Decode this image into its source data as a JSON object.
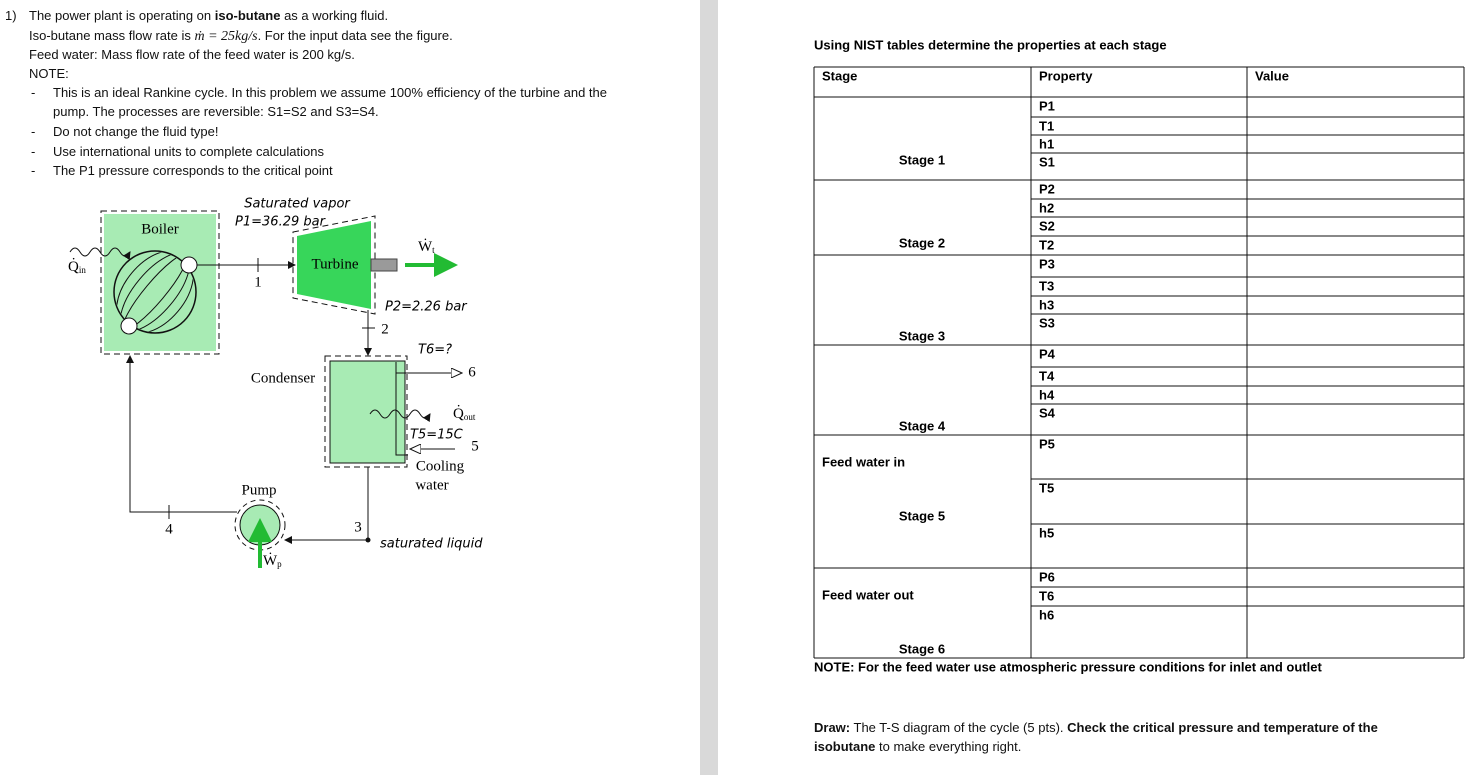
{
  "problem": {
    "number": "1)",
    "intro": {
      "before": "The power plant is operating on ",
      "bold": "iso-butane",
      "after": " as a working fluid."
    },
    "mass_flow": {
      "before": "Iso-butane mass flow rate is ",
      "formula": "ṁ = 25kg/s",
      "after": ". For the input data see the figure."
    },
    "feed_water": "Feed water: Mass flow rate of the feed water is 200 kg/s.",
    "note_label": "NOTE:",
    "bullet": "-",
    "notes": [
      "This is an ideal Rankine cycle. In this problem we assume 100% efficiency of the turbine and the pump. The processes are reversible: S1=S2 and S3=S4.",
      "Do not change the fluid type!",
      "Use international units to complete calculations",
      "The P1 pressure corresponds to the critical point"
    ]
  },
  "diagram": {
    "saturated_vapor": "Saturated vapor",
    "p1": "P1=36.29 bar",
    "boiler": "Boiler",
    "turbine": "Turbine",
    "condenser": "Condenser",
    "pump": "Pump",
    "work_turbine": {
      "symbol": "Ẇ",
      "subscript": "t"
    },
    "heat_in": {
      "symbol": "Q̇",
      "subscript": "in"
    },
    "heat_out": {
      "symbol": "Q̇",
      "subscript": "out"
    },
    "work_pump": {
      "symbol": "Ẇ",
      "subscript": "p"
    },
    "p2": "P2=2.26 bar",
    "t6": "T6=?",
    "t5": "T5=15C",
    "cooling_water": [
      "Cooling",
      "water"
    ],
    "saturated_liquid": "saturated liquid",
    "points": [
      "1",
      "2",
      "3",
      "4",
      "5",
      "6"
    ]
  },
  "table": {
    "title": "Using NIST tables determine the properties at each stage",
    "headers": [
      "Stage",
      "Property",
      "Value"
    ],
    "groups": [
      {
        "stage": "Stage 1",
        "properties": [
          "P1",
          "T1",
          "h1",
          "S1"
        ]
      },
      {
        "stage": "Stage 2",
        "properties": [
          "P2",
          "h2",
          "S2",
          "T2"
        ]
      },
      {
        "stage": "Stage 3",
        "properties": [
          "P3",
          "T3",
          "h3",
          "S3"
        ]
      },
      {
        "stage": "Stage 4",
        "properties": [
          "P4",
          "T4",
          "h4",
          "S4"
        ]
      },
      {
        "label": "Feed water in",
        "stage": "Stage 5",
        "properties": [
          "P5",
          "T5",
          "h5"
        ]
      },
      {
        "label": "Feed water out",
        "stage": "Stage 6",
        "properties": [
          "P6",
          "T6",
          "h6"
        ]
      }
    ],
    "note": "NOTE: For the feed water use atmospheric pressure conditions for inlet and outlet",
    "draw": {
      "label": "Draw:",
      "text1": " The T-S diagram of the cycle (5 pts). ",
      "bold": "Check the critical pressure and temperature of the isobutane",
      "text2": " to make everything right."
    }
  }
}
